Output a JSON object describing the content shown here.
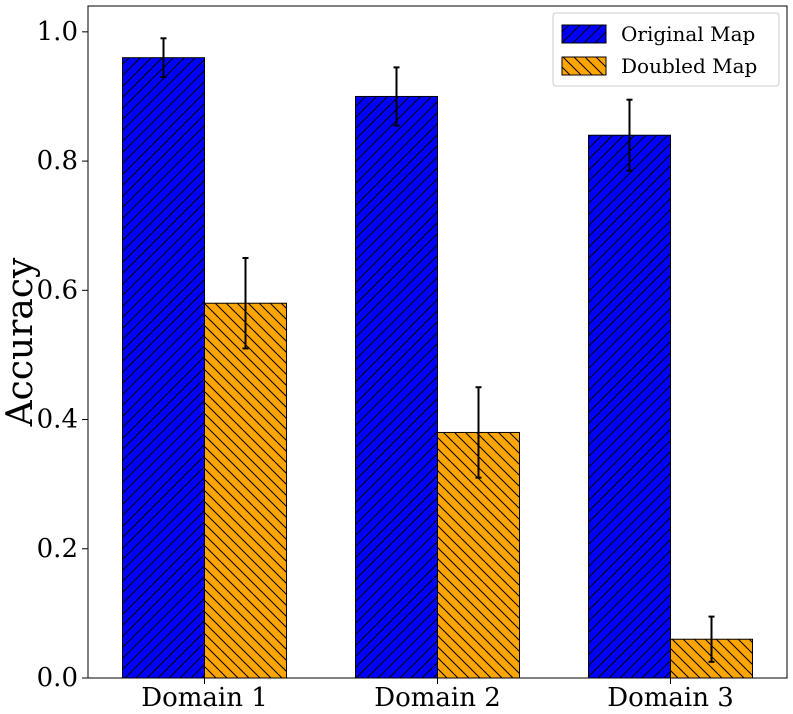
{
  "chart_data": {
    "type": "bar",
    "title": "",
    "xlabel": "",
    "ylabel": "Accuracy",
    "categories": [
      "Domain 1",
      "Domain 2",
      "Domain 3"
    ],
    "series": [
      {
        "name": "Original Map",
        "color": "#0000ff",
        "hatch": "forward-diagonal",
        "values": [
          0.96,
          0.9,
          0.84
        ],
        "errors": [
          0.03,
          0.045,
          0.055
        ]
      },
      {
        "name": "Doubled Map",
        "color": "#ffa500",
        "hatch": "back-diagonal",
        "values": [
          0.58,
          0.38,
          0.06
        ],
        "errors": [
          0.07,
          0.07,
          0.035
        ]
      }
    ],
    "ylim": [
      0,
      1.04
    ],
    "yticks": [
      0.0,
      0.2,
      0.4,
      0.6,
      0.8,
      1.0
    ],
    "ytick_labels": [
      "0.0",
      "0.2",
      "0.4",
      "0.6",
      "0.8",
      "1.0"
    ],
    "grid": false,
    "legend_position": "top-right"
  }
}
